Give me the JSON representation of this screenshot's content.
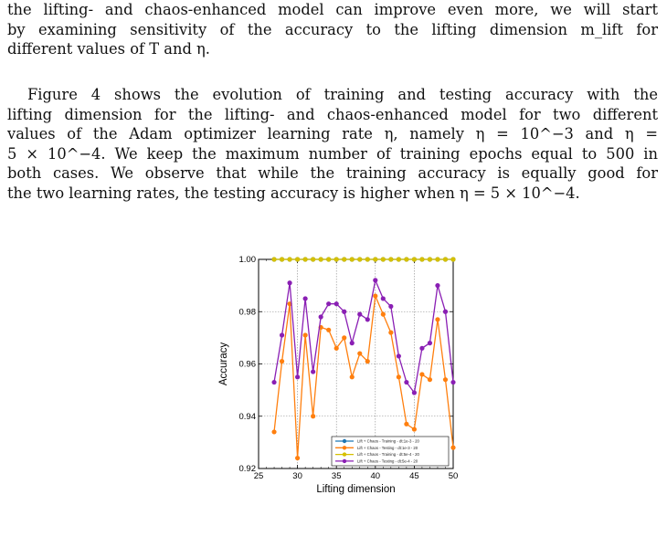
{
  "paragraph1": {
    "lines": [
      "the lifting- and chaos-enhanced model can improve even more, we will start",
      "by examining sensitivity of the accuracy to the lifting dimension m_lift for",
      "different values of T and η."
    ]
  },
  "paragraph2": {
    "lines": [
      "Figure 4 shows the evolution of training and testing accuracy with the",
      "lifting dimension for the lifting- and chaos-enhanced model for two different",
      "values of the Adam optimizer learning rate η, namely η = 10^−3 and η =",
      "5 × 10^−4. We keep the maximum number of training epochs equal to 500 in",
      "both cases. We observe that while the training accuracy is equally good for",
      "the two learning rates, the testing accuracy is higher when η = 5 × 10^−4."
    ]
  },
  "chart_data": {
    "type": "line",
    "xlabel": "Lifting dimension",
    "ylabel": "Accuracy",
    "xlim": [
      25,
      50
    ],
    "ylim": [
      0.92,
      1.0
    ],
    "xticks": [
      "25",
      "30",
      "35",
      "40",
      "45",
      "50"
    ],
    "yticks": [
      "0.92",
      "0.94",
      "0.96",
      "0.98",
      "1.00"
    ],
    "grid": true,
    "legend_position": "lower-right",
    "x": [
      27,
      28,
      29,
      30,
      31,
      32,
      33,
      34,
      35,
      36,
      37,
      38,
      39,
      40,
      41,
      42,
      43,
      44,
      45,
      46,
      47,
      48,
      49,
      50
    ],
    "series": [
      {
        "name": "Lift + Chaos - Training - dt:1e-3 - 20",
        "color": "#1f77b4",
        "values": [
          1.0,
          1.0,
          1.0,
          1.0,
          1.0,
          1.0,
          1.0,
          1.0,
          1.0,
          1.0,
          1.0,
          1.0,
          1.0,
          1.0,
          1.0,
          1.0,
          1.0,
          1.0,
          1.0,
          1.0,
          1.0,
          1.0,
          1.0,
          1.0
        ]
      },
      {
        "name": "Lift + Chaos - Testing - dt:1e-3 - 20",
        "color": "#ff7f0e",
        "values": [
          0.934,
          0.961,
          0.983,
          0.924,
          0.971,
          0.94,
          0.974,
          0.973,
          0.966,
          0.97,
          0.955,
          0.964,
          0.961,
          0.986,
          0.979,
          0.972,
          0.955,
          0.937,
          0.935,
          0.956,
          0.954,
          0.977,
          0.954,
          0.928
        ]
      },
      {
        "name": "Lift + Chaos - Training - dt:5e-4 - 20",
        "color": "#d6c000",
        "values": [
          1.0,
          1.0,
          1.0,
          1.0,
          1.0,
          1.0,
          1.0,
          1.0,
          1.0,
          1.0,
          1.0,
          1.0,
          1.0,
          1.0,
          1.0,
          1.0,
          1.0,
          1.0,
          1.0,
          1.0,
          1.0,
          1.0,
          1.0,
          1.0
        ]
      },
      {
        "name": "Lift + Chaos - Testing - dt:5e-4 - 20",
        "color": "#8a1fb4",
        "values": [
          0.953,
          0.971,
          0.991,
          0.955,
          0.985,
          0.957,
          0.978,
          0.983,
          0.983,
          0.98,
          0.968,
          0.979,
          0.977,
          0.992,
          0.985,
          0.982,
          0.963,
          0.953,
          0.949,
          0.966,
          0.968,
          0.99,
          0.98,
          0.953
        ]
      }
    ]
  }
}
